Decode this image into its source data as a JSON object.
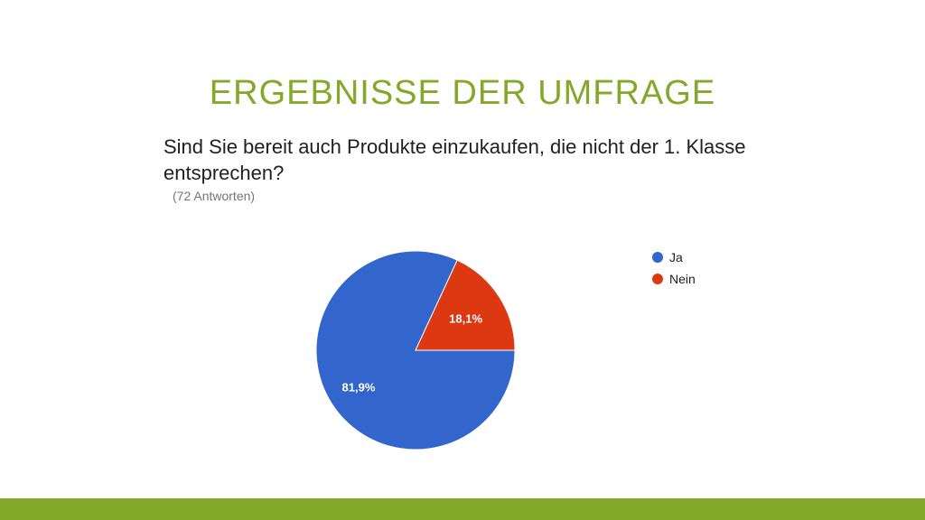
{
  "slide": {
    "title": "ERGEBNISSE DER UMFRAGE",
    "accent_color": "#84a82a"
  },
  "question": {
    "text": "Sind Sie bereit auch Produkte einzukaufen, die nicht der 1. Klasse entsprechen?",
    "responses": "(72 Antworten)"
  },
  "chart_data": {
    "type": "pie",
    "title": "",
    "legend_position": "right",
    "slices": [
      {
        "label": "Ja",
        "value": 81.9,
        "value_label": "81,9%",
        "color": "#3366cc"
      },
      {
        "label": "Nein",
        "value": 18.1,
        "value_label": "18,1%",
        "color": "#dc3912"
      }
    ]
  }
}
